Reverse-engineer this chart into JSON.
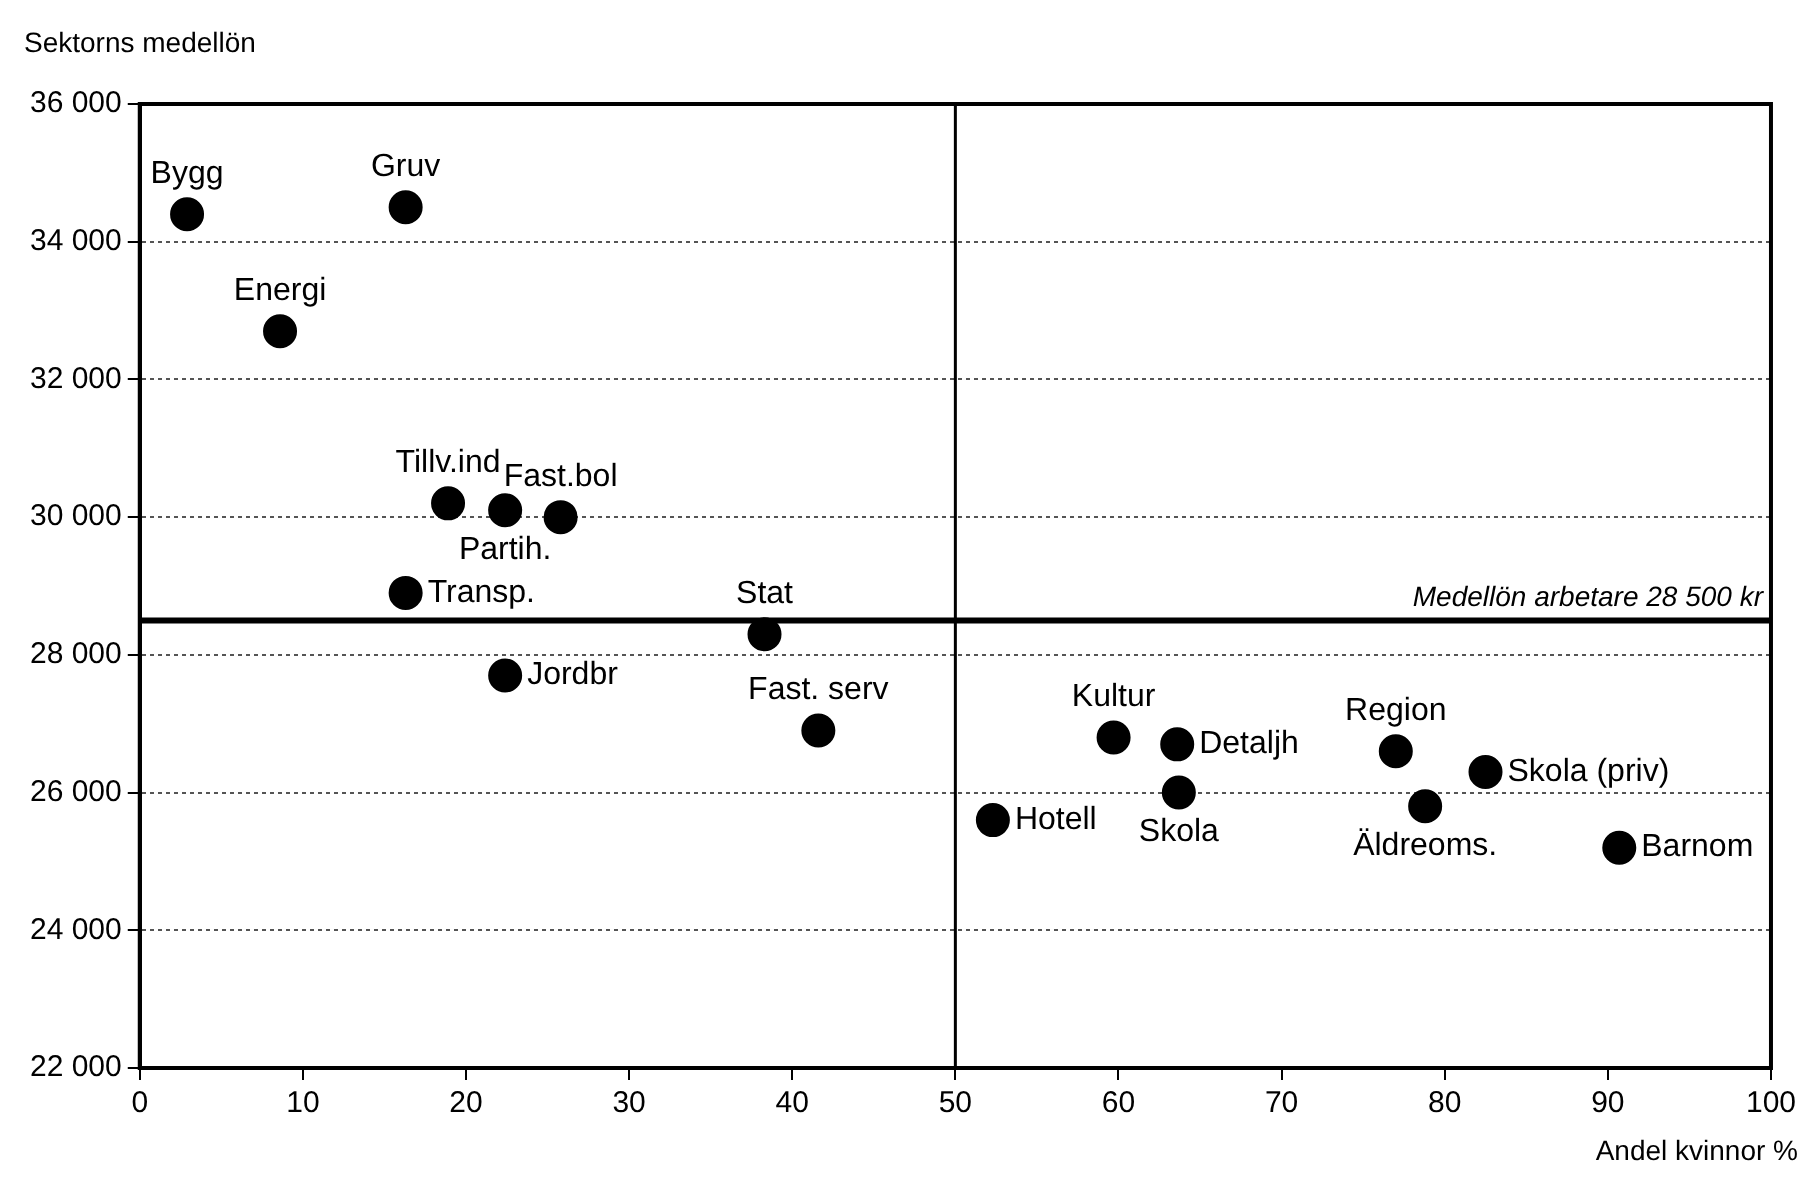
{
  "chart_data": {
    "type": "scatter",
    "xlabel": "Andel kvinnor %",
    "ylabel": "Sektorns medellön",
    "x": [
      2.9,
      16.3,
      8.6,
      18.9,
      22.4,
      25.8,
      16.3,
      38.3,
      22.4,
      41.6,
      52.3,
      59.7,
      63.6,
      63.7,
      77.0,
      82.5,
      78.8,
      90.7
    ],
    "series": [
      {
        "color": "#000000",
        "values": [
          34400,
          34500,
          32700,
          30200,
          30100,
          30000,
          28900,
          28300,
          27700,
          26900,
          25600,
          26800,
          26700,
          26000,
          26600,
          26300,
          25800,
          25200
        ]
      }
    ],
    "annotations": [
      {
        "text": "Bygg",
        "x": 2.9,
        "y": 34400
      },
      {
        "text": "Gruv",
        "x": 16.3,
        "y": 34500
      },
      {
        "text": "Energi",
        "x": 8.6,
        "y": 32700
      },
      {
        "text": "Tillv.ind",
        "x": 18.9,
        "y": 30200
      },
      {
        "text": "Partih.",
        "x": 22.4,
        "y": 30100
      },
      {
        "text": "Fast.bol",
        "x": 25.8,
        "y": 30000
      },
      {
        "text": "Transp.",
        "x": 16.3,
        "y": 28900
      },
      {
        "text": "Stat",
        "x": 38.3,
        "y": 28300
      },
      {
        "text": "Jordbr",
        "x": 22.4,
        "y": 27700
      },
      {
        "text": "Fast. serv",
        "x": 41.6,
        "y": 26900
      },
      {
        "text": "Hotell",
        "x": 52.3,
        "y": 25600
      },
      {
        "text": "Kultur",
        "x": 59.7,
        "y": 26800
      },
      {
        "text": "Detaljh",
        "x": 63.6,
        "y": 26700
      },
      {
        "text": "Skola",
        "x": 63.7,
        "y": 26000
      },
      {
        "text": "Region",
        "x": 77.0,
        "y": 26600
      },
      {
        "text": "Skola (priv)",
        "x": 82.5,
        "y": 26300
      },
      {
        "text": "Äldreoms.",
        "x": 78.8,
        "y": 25800
      },
      {
        "text": "Barnom",
        "x": 90.7,
        "y": 25200
      }
    ],
    "ref_lines": [
      {
        "axis": "y",
        "value": 28500,
        "label": "Medellön arbetare 28 500 kr"
      },
      {
        "axis": "x",
        "value": 50
      }
    ],
    "xlim": [
      0,
      100
    ],
    "xticks": [
      0,
      10,
      20,
      30,
      40,
      50,
      60,
      70,
      80,
      90,
      100
    ],
    "ylim": [
      22000,
      36000
    ],
    "yticks": [
      {
        "value": 22000,
        "label": "22 000"
      },
      {
        "value": 24000,
        "label": "24 000"
      },
      {
        "value": 26000,
        "label": "26 000"
      },
      {
        "value": 28000,
        "label": "28 000"
      },
      {
        "value": 30000,
        "label": "30 000"
      },
      {
        "value": 32000,
        "label": "32 000"
      },
      {
        "value": 34000,
        "label": "34 000"
      },
      {
        "value": 36000,
        "label": "36 000"
      }
    ],
    "grid": "y",
    "legend": false,
    "marker": "circle"
  }
}
